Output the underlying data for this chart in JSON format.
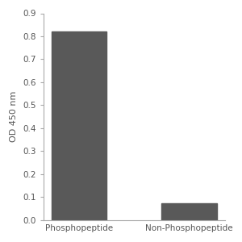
{
  "categories": [
    "Phosphopeptide",
    "Non-Phosphopeptide"
  ],
  "values": [
    0.82,
    0.073
  ],
  "bar_color": "#595959",
  "ylabel": "OD 450 nm",
  "ylim": [
    0,
    0.9
  ],
  "yticks": [
    0.0,
    0.1,
    0.2,
    0.3,
    0.4,
    0.5,
    0.6,
    0.7,
    0.8,
    0.9
  ],
  "bar_width": 0.5,
  "background_color": "#ffffff",
  "tick_fontsize": 7.5,
  "label_fontsize": 8,
  "spine_color": "#aaaaaa",
  "text_color": "#555555"
}
